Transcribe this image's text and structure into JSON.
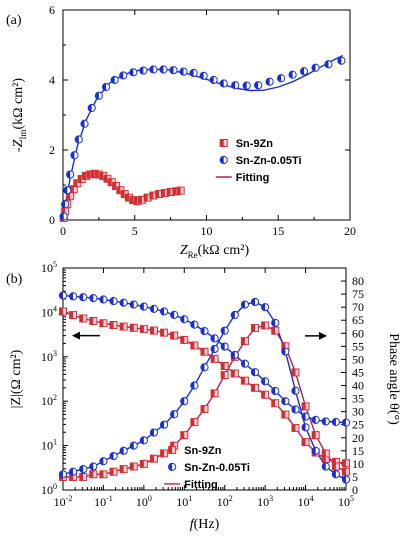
{
  "chart_data": [
    {
      "type": "scatter",
      "panel_label": "(a)",
      "xlabel": {
        "main": "Z",
        "sub": "Re",
        "unit": "(kΩ cm²)"
      },
      "ylabel": {
        "prefix": "-Z",
        "sub": "Im",
        "unit": "(kΩ cm²)"
      },
      "xlim": [
        0,
        20
      ],
      "ylim": [
        0,
        6
      ],
      "xticks": [
        0,
        5,
        10,
        15,
        20
      ],
      "yticks": [
        0,
        2,
        4,
        6
      ],
      "legend_position": "center-right",
      "colors": {
        "sn9zn": "#d32f2f",
        "snzn_ti": "#1a2fd4",
        "fitting": "#b0205a"
      },
      "series": [
        {
          "name": "Sn-9Zn",
          "marker": "half-filled-square",
          "points": [
            [
              0.05,
              0.06
            ],
            [
              0.15,
              0.25
            ],
            [
              0.3,
              0.45
            ],
            [
              0.5,
              0.68
            ],
            [
              0.75,
              0.88
            ],
            [
              1.0,
              1.05
            ],
            [
              1.3,
              1.17
            ],
            [
              1.6,
              1.26
            ],
            [
              1.9,
              1.3
            ],
            [
              2.2,
              1.32
            ],
            [
              2.5,
              1.3
            ],
            [
              2.8,
              1.26
            ],
            [
              3.1,
              1.18
            ],
            [
              3.4,
              1.08
            ],
            [
              3.7,
              0.97
            ],
            [
              4.0,
              0.85
            ],
            [
              4.3,
              0.74
            ],
            [
              4.6,
              0.64
            ],
            [
              4.9,
              0.57
            ],
            [
              5.2,
              0.54
            ],
            [
              5.5,
              0.58
            ],
            [
              5.9,
              0.64
            ],
            [
              6.3,
              0.7
            ],
            [
              6.7,
              0.74
            ],
            [
              7.1,
              0.77
            ],
            [
              7.5,
              0.8
            ],
            [
              7.9,
              0.82
            ],
            [
              8.2,
              0.84
            ]
          ]
        },
        {
          "name": "Sn-Zn-0.05Ti",
          "marker": "half-filled-circle",
          "points": [
            [
              0.05,
              0.1
            ],
            [
              0.15,
              0.45
            ],
            [
              0.3,
              0.85
            ],
            [
              0.5,
              1.3
            ],
            [
              0.8,
              1.85
            ],
            [
              1.1,
              2.3
            ],
            [
              1.5,
              2.75
            ],
            [
              2.0,
              3.2
            ],
            [
              2.5,
              3.55
            ],
            [
              3.0,
              3.8
            ],
            [
              3.6,
              4.0
            ],
            [
              4.2,
              4.13
            ],
            [
              4.9,
              4.22
            ],
            [
              5.6,
              4.27
            ],
            [
              6.3,
              4.3
            ],
            [
              7.0,
              4.3
            ],
            [
              7.7,
              4.28
            ],
            [
              8.4,
              4.24
            ],
            [
              9.1,
              4.2
            ],
            [
              9.8,
              4.12
            ],
            [
              10.5,
              4.0
            ],
            [
              11.2,
              3.9
            ],
            [
              12.0,
              3.85
            ],
            [
              12.8,
              3.84
            ],
            [
              13.6,
              3.85
            ],
            [
              14.4,
              3.95
            ],
            [
              15.2,
              4.05
            ],
            [
              16.0,
              4.15
            ],
            [
              16.8,
              4.25
            ],
            [
              17.6,
              4.35
            ],
            [
              18.5,
              4.45
            ],
            [
              19.4,
              4.55
            ]
          ]
        },
        {
          "name": "Fitting",
          "style": "line",
          "curves": [
            [
              [
                0,
                0
              ],
              [
                0.2,
                0.3
              ],
              [
                0.5,
                0.68
              ],
              [
                0.9,
                0.98
              ],
              [
                1.4,
                1.2
              ],
              [
                1.9,
                1.28
              ],
              [
                2.4,
                1.27
              ],
              [
                2.9,
                1.18
              ],
              [
                3.4,
                1.04
              ],
              [
                3.9,
                0.88
              ],
              [
                4.4,
                0.72
              ],
              [
                4.9,
                0.6
              ],
              [
                5.3,
                0.56
              ],
              [
                5.8,
                0.6
              ],
              [
                6.5,
                0.68
              ],
              [
                7.3,
                0.75
              ],
              [
                8.2,
                0.8
              ]
            ],
            [
              [
                0,
                0
              ],
              [
                0.2,
                0.55
              ],
              [
                0.5,
                1.2
              ],
              [
                1.0,
                2.1
              ],
              [
                1.6,
                2.85
              ],
              [
                2.4,
                3.5
              ],
              [
                3.3,
                3.93
              ],
              [
                4.3,
                4.17
              ],
              [
                5.3,
                4.28
              ],
              [
                6.3,
                4.31
              ],
              [
                7.3,
                4.29
              ],
              [
                8.5,
                4.2
              ],
              [
                9.7,
                4.06
              ],
              [
                10.9,
                3.9
              ],
              [
                12.0,
                3.77
              ],
              [
                13.0,
                3.7
              ],
              [
                14.0,
                3.71
              ],
              [
                15.0,
                3.8
              ],
              [
                16.0,
                3.95
              ],
              [
                17.0,
                4.15
              ],
              [
                18.0,
                4.38
              ],
              [
                19.0,
                4.6
              ],
              [
                19.5,
                4.7
              ]
            ]
          ]
        }
      ]
    },
    {
      "type": "line",
      "panel_label": "(b)",
      "xlabel": {
        "main": "f",
        "unit": "(Hz)"
      },
      "ylabel_left": "|Z|(Ω cm²)",
      "ylabel_right": "Phase angle θ(°)",
      "x_scale": "log",
      "y_left_scale": "log",
      "xlim": [
        0.01,
        100000
      ],
      "ylim_left": [
        1,
        100000
      ],
      "ylim_right": [
        0,
        85
      ],
      "xtick_exponents": [
        -2,
        -1,
        0,
        1,
        2,
        3,
        4,
        5
      ],
      "ytick_left_exponents": [
        0,
        1,
        2,
        3,
        4,
        5
      ],
      "yticks_right": [
        0,
        5,
        10,
        15,
        20,
        25,
        30,
        35,
        40,
        45,
        50,
        55,
        60,
        65,
        70,
        75,
        80
      ],
      "legend_position": "bottom-center",
      "arrows": [
        "left",
        "right"
      ],
      "series": [
        {
          "name": "Sn-9Zn",
          "axis": "both",
          "log_f": [
            -2.0,
            -1.75,
            -1.5,
            -1.25,
            -1.0,
            -0.75,
            -0.5,
            -0.25,
            0.0,
            0.25,
            0.5,
            0.75,
            1.0,
            1.25,
            1.5,
            1.75,
            2.0,
            2.25,
            2.5,
            2.75,
            3.0,
            3.25,
            3.5,
            3.75,
            4.0,
            4.25,
            4.5,
            4.75,
            5.0
          ],
          "modulus": [
            10500,
            8700,
            7300,
            6400,
            5700,
            5200,
            4800,
            4500,
            4200,
            3900,
            3500,
            3000,
            2400,
            1800,
            1300,
            900,
            620,
            420,
            290,
            200,
            140,
            90,
            50,
            25,
            12,
            7,
            5,
            4.3,
            4.0
          ],
          "phase": [
            5,
            5,
            5,
            6,
            6,
            7,
            8,
            9,
            10,
            12,
            14,
            17,
            21,
            26,
            31,
            37,
            44,
            51,
            57,
            62,
            63,
            61,
            55,
            45,
            32,
            21,
            14,
            9,
            7
          ]
        },
        {
          "name": "Sn-Zn-0.05Ti",
          "axis": "both",
          "log_f": [
            -2.0,
            -1.75,
            -1.5,
            -1.25,
            -1.0,
            -0.75,
            -0.5,
            -0.25,
            0.0,
            0.25,
            0.5,
            0.75,
            1.0,
            1.25,
            1.5,
            1.75,
            2.0,
            2.25,
            2.5,
            2.75,
            3.0,
            3.25,
            3.5,
            3.75,
            4.0,
            4.25,
            4.5,
            4.75,
            5.0
          ],
          "modulus": [
            24000,
            23000,
            22000,
            21000,
            19500,
            18000,
            16500,
            15000,
            13500,
            12000,
            10500,
            8800,
            7000,
            5300,
            3800,
            2600,
            1700,
            1100,
            700,
            450,
            280,
            170,
            100,
            65,
            45,
            38,
            35,
            34,
            33
          ],
          "phase": [
            6,
            7,
            8,
            9,
            11,
            13,
            15,
            17,
            19,
            22,
            25,
            29,
            34,
            40,
            47,
            54,
            61,
            67,
            71,
            72,
            70,
            64,
            53,
            38,
            24,
            15,
            9,
            6,
            4
          ]
        },
        {
          "name": "Fitting",
          "style": "line"
        }
      ]
    }
  ]
}
